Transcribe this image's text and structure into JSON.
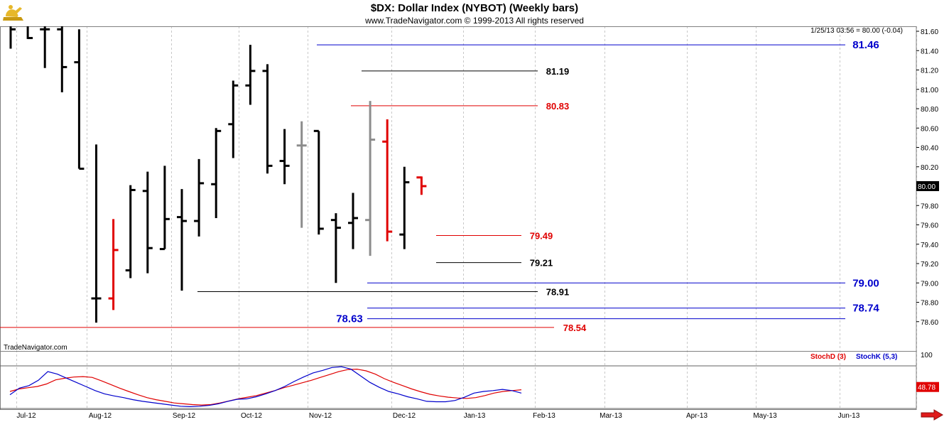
{
  "header": {
    "title": "$DX:  Dollar Index (NYBOT)  (Weekly bars)",
    "subtitle": "www.TradeNavigator.com © 1999-2013 All rights reserved",
    "last_quote": "1/25/13 03:56 = 80.00 (-0.04)",
    "watermark": "TradeNavigator.com",
    "logo_icon": "genie-lamp-icon",
    "scroll_icon": "red-right-arrow-icon"
  },
  "chart_data": [
    {
      "type": "ohlc",
      "title": "$DX:  Dollar Index (NYBOT)  (Weekly bars)",
      "ylim": [
        78.5,
        81.62
      ],
      "y_ticks": [
        "81.60",
        "81.40",
        "81.20",
        "81.00",
        "80.80",
        "80.60",
        "80.40",
        "80.20",
        "80.00",
        "79.80",
        "79.60",
        "79.40",
        "79.20",
        "79.00",
        "78.80",
        "78.60"
      ],
      "x_ticks": [
        "Jul-12",
        "Aug-12",
        "Sep-12",
        "Oct-12",
        "Nov-12",
        "Dec-12",
        "Jan-13",
        "Feb-13",
        "Mar-13",
        "Apr-13",
        "May-13",
        "Jun-13"
      ],
      "last_price_label": "80.00",
      "bars": [
        {
          "o": 81.7,
          "h": 81.9,
          "l": 81.42,
          "c": 81.62,
          "color": "black"
        },
        {
          "o": 81.7,
          "h": 81.9,
          "l": 81.52,
          "c": 81.53,
          "color": "black"
        },
        {
          "o": 81.62,
          "h": 81.8,
          "l": 81.22,
          "c": 81.62,
          "color": "black"
        },
        {
          "o": 81.62,
          "h": 81.75,
          "l": 80.97,
          "c": 81.23,
          "color": "black"
        },
        {
          "o": 81.28,
          "h": 81.62,
          "l": 80.18,
          "c": 80.18,
          "color": "black"
        },
        {
          "o": 78.84,
          "h": 80.43,
          "l": 78.59,
          "c": 78.84,
          "color": "black"
        },
        {
          "o": 78.84,
          "h": 79.66,
          "l": 78.72,
          "c": 79.34,
          "color": "red"
        },
        {
          "o": 79.13,
          "h": 80.01,
          "l": 79.05,
          "c": 79.96,
          "color": "black"
        },
        {
          "o": 79.95,
          "h": 80.15,
          "l": 79.1,
          "c": 79.36,
          "color": "black"
        },
        {
          "o": 79.35,
          "h": 80.21,
          "l": 79.35,
          "c": 79.66,
          "color": "black"
        },
        {
          "o": 79.68,
          "h": 79.97,
          "l": 78.92,
          "c": 79.64,
          "color": "black"
        },
        {
          "o": 79.64,
          "h": 80.28,
          "l": 79.48,
          "c": 80.03,
          "color": "black"
        },
        {
          "o": 80.02,
          "h": 80.6,
          "l": 79.67,
          "c": 80.57,
          "color": "black"
        },
        {
          "o": 80.64,
          "h": 81.09,
          "l": 80.29,
          "c": 81.04,
          "color": "black"
        },
        {
          "o": 81.04,
          "h": 81.46,
          "l": 80.84,
          "c": 81.19,
          "color": "black"
        },
        {
          "o": 81.19,
          "h": 81.26,
          "l": 80.13,
          "c": 80.21,
          "color": "black"
        },
        {
          "o": 80.26,
          "h": 80.59,
          "l": 80.02,
          "c": 80.21,
          "color": "black"
        },
        {
          "o": 80.42,
          "h": 80.67,
          "l": 79.57,
          "c": 80.42,
          "color": "gray"
        },
        {
          "o": 80.57,
          "h": 80.57,
          "l": 79.5,
          "c": 79.56,
          "color": "black"
        },
        {
          "o": 79.65,
          "h": 79.72,
          "l": 79.0,
          "c": 79.57,
          "color": "black"
        },
        {
          "o": 79.62,
          "h": 79.93,
          "l": 79.35,
          "c": 79.67,
          "color": "black"
        },
        {
          "o": 79.65,
          "h": 80.88,
          "l": 79.28,
          "c": 80.48,
          "color": "gray"
        },
        {
          "o": 80.46,
          "h": 80.69,
          "l": 79.43,
          "c": 79.53,
          "color": "red"
        },
        {
          "o": 79.5,
          "h": 80.2,
          "l": 79.35,
          "c": 80.04,
          "color": "black"
        },
        {
          "o": 80.09,
          "h": 80.1,
          "l": 79.91,
          "c": 80.0,
          "color": "red"
        }
      ],
      "levels": [
        {
          "value": 81.46,
          "label": "81.46",
          "color": "blue"
        },
        {
          "value": 81.19,
          "label": "81.19",
          "color": "black"
        },
        {
          "value": 80.83,
          "label": "80.83",
          "color": "red"
        },
        {
          "value": 79.49,
          "label": "79.49",
          "color": "red"
        },
        {
          "value": 79.21,
          "label": "79.21",
          "color": "black"
        },
        {
          "value": 79.0,
          "label": "79.00",
          "color": "blue"
        },
        {
          "value": 78.91,
          "label": "78.91",
          "color": "black"
        },
        {
          "value": 78.74,
          "label": "78.74",
          "color": "blue"
        },
        {
          "value": 78.63,
          "label": "78.63",
          "color": "blue"
        },
        {
          "value": 78.54,
          "label": "78.54",
          "color": "red"
        }
      ]
    },
    {
      "type": "line",
      "title": "",
      "legend": [
        "StochD (3)",
        "StochK (5,3)"
      ],
      "y_tick": "100",
      "last_value_label": "48.78",
      "series": [
        {
          "name": "StochD (3)",
          "color": "red",
          "values": [
            38,
            44,
            47,
            50,
            56,
            66,
            70,
            73,
            74,
            72,
            64,
            55,
            46,
            38,
            30,
            23,
            18,
            14,
            10,
            8,
            6,
            5,
            6,
            10,
            15,
            20,
            24,
            28,
            34,
            40,
            47,
            53,
            59,
            65,
            72,
            79,
            86,
            91,
            92,
            88,
            80,
            69,
            60,
            52,
            44,
            37,
            31,
            27,
            24,
            22,
            21,
            23,
            28,
            34,
            38,
            40,
            42
          ]
        },
        {
          "name": "StochK (5,3)",
          "color": "blue",
          "values": [
            30,
            46,
            52,
            65,
            86,
            80,
            70,
            60,
            50,
            40,
            32,
            27,
            23,
            18,
            14,
            11,
            8,
            5,
            2,
            1,
            2,
            4,
            8,
            14,
            19,
            20,
            25,
            32,
            40,
            50,
            62,
            73,
            83,
            89,
            96,
            98,
            92,
            76,
            60,
            48,
            38,
            32,
            25,
            20,
            14,
            13,
            13,
            16,
            24,
            34,
            38,
            40,
            43,
            40,
            34
          ]
        }
      ]
    }
  ]
}
